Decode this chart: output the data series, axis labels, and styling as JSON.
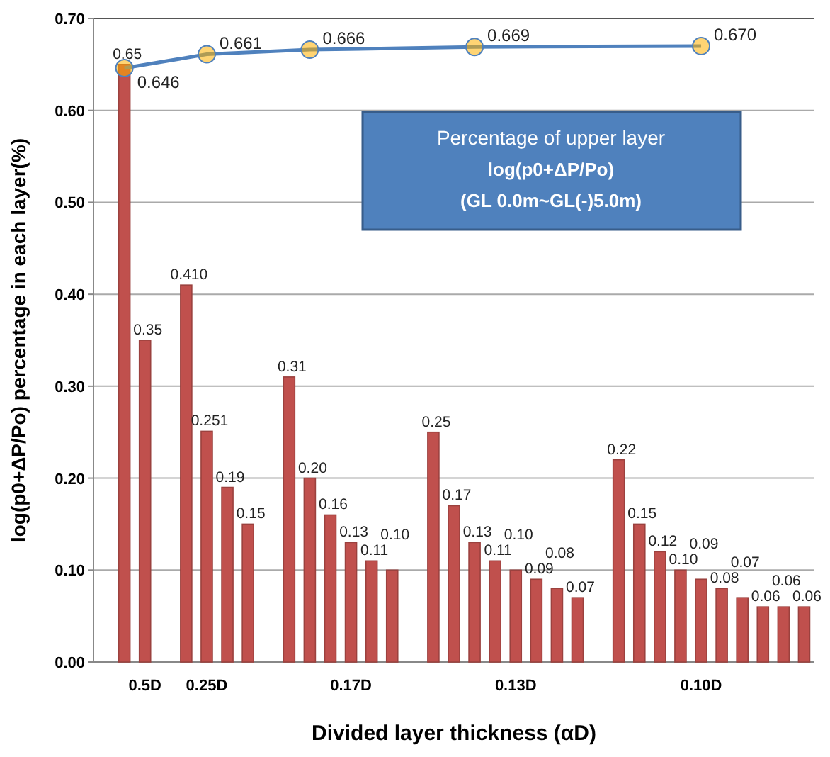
{
  "chart_data": {
    "type": "bar",
    "xlabel": "Divided layer thickness (αD)",
    "ylabel": "log(p0+ΔP/Po) percentage in each layer(%)",
    "categories": [
      null,
      null,
      "0.5D",
      null,
      null,
      "0.25D",
      null,
      null,
      null,
      null,
      null,
      null,
      "0.17D",
      null,
      null,
      null,
      null,
      null,
      null,
      null,
      "0.13D",
      null,
      null,
      null,
      null,
      null,
      null,
      null,
      null,
      "0.10D",
      null,
      null,
      null,
      null,
      null
    ],
    "series": [
      {
        "color": "#c0504d",
        "values": [
          null,
          0.65,
          0.35,
          null,
          0.41,
          0.251,
          0.19,
          0.15,
          null,
          0.31,
          0.2,
          0.16,
          0.13,
          0.11,
          0.1,
          null,
          0.25,
          0.17,
          0.13,
          0.11,
          0.1,
          0.09,
          0.08,
          0.07,
          null,
          0.22,
          0.15,
          0.12,
          0.1,
          0.09,
          0.08,
          0.07,
          0.06,
          0.06,
          0.06
        ],
        "value_labels": [
          null,
          "0.65",
          "0.35",
          null,
          "0.410",
          "0.251",
          "0.19",
          "0.15",
          null,
          "0.31",
          "0.20",
          "0.16",
          "0.13",
          "0.11",
          "0.10",
          null,
          "0.25",
          "0.17",
          "0.13",
          "0.11",
          "0.10",
          "0.09",
          "0.08",
          "0.07",
          null,
          "0.22",
          "0.15",
          "0.12",
          "0.10",
          "0.09",
          "0.08",
          "0.07",
          "0.06",
          "0.06",
          "0.06"
        ]
      },
      {
        "type": "line",
        "color": "#4f81bd",
        "values": [
          null,
          0.646,
          null,
          null,
          null,
          0.661,
          null,
          null,
          null,
          null,
          0.666,
          null,
          null,
          null,
          null,
          null,
          null,
          null,
          0.669,
          null,
          null,
          null,
          null,
          null,
          null,
          null,
          null,
          null,
          null,
          0.67,
          null,
          null,
          null,
          null,
          null
        ],
        "value_labels": [
          null,
          "0.646",
          null,
          null,
          null,
          "0.661",
          null,
          null,
          null,
          null,
          "0.666",
          null,
          null,
          null,
          null,
          null,
          null,
          null,
          "0.669",
          null,
          null,
          null,
          null,
          null,
          null,
          null,
          null,
          null,
          null,
          "0.670",
          null,
          null,
          null,
          null,
          null
        ]
      }
    ],
    "marker": "circle",
    "grid": "y",
    "ylim": [
      0,
      0.7
    ],
    "yticks": [
      {
        "value": 0,
        "label": "0.00"
      },
      {
        "value": 0.1,
        "label": "0.10"
      },
      {
        "value": 0.2,
        "label": "0.20"
      },
      {
        "value": 0.3,
        "label": "0.30"
      },
      {
        "value": 0.4,
        "label": "0.40"
      },
      {
        "value": 0.5,
        "label": "0.50"
      },
      {
        "value": 0.6,
        "label": "0.60"
      },
      {
        "value": 0.7,
        "label": "0.70"
      }
    ],
    "annotations": [
      "Percentage of upper layer",
      "log(p0+ΔP/Po)",
      "(GL 0.0m~GL(-)5.0m)"
    ]
  }
}
